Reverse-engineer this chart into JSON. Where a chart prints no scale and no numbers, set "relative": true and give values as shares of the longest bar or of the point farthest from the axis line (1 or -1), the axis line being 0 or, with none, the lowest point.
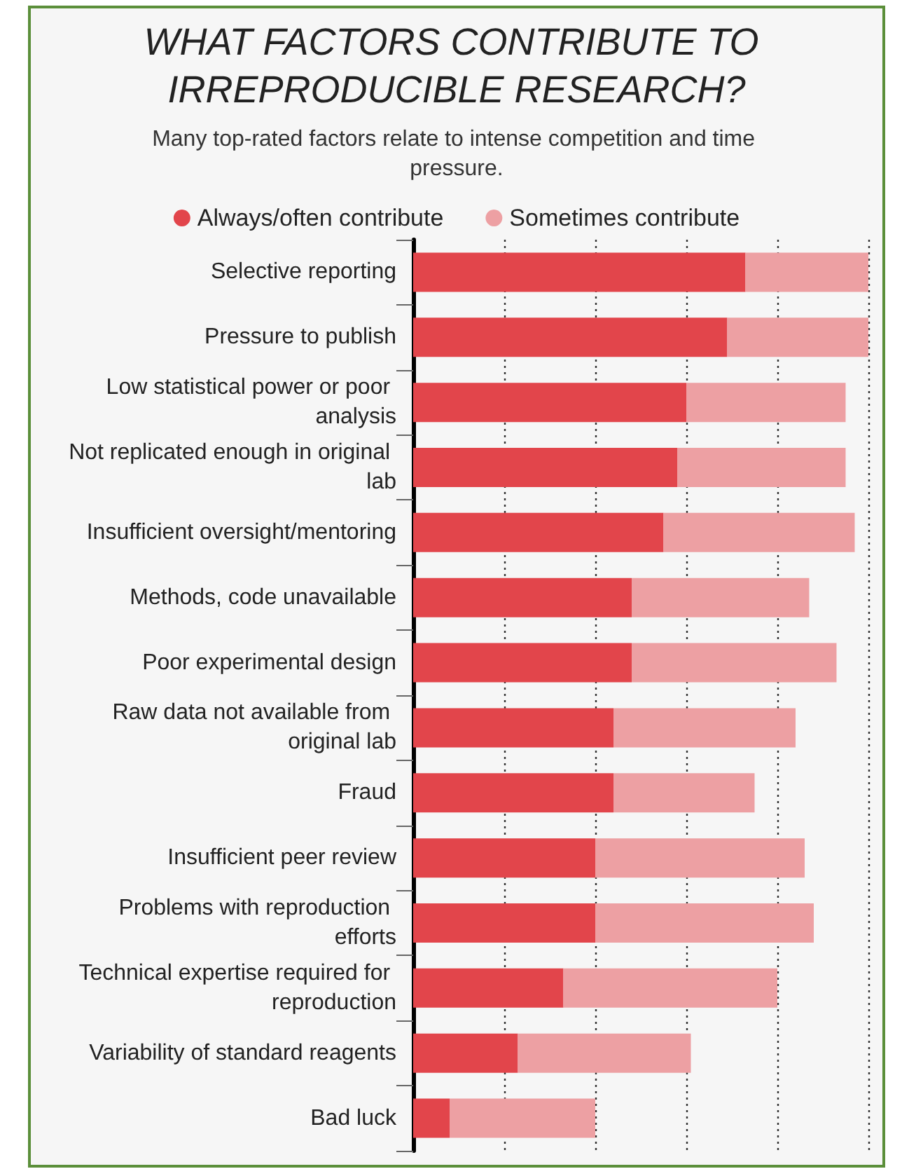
{
  "chart_data": {
    "type": "bar",
    "orientation": "horizontal",
    "stacked": true,
    "relative": true,
    "title": "WHAT FACTORS CONTRIBUTE TO IRREPRODUCIBLE RESEARCH?",
    "subtitle": "Many top-rated factors relate to intense competition and time pressure.",
    "categories": [
      "Selective reporting",
      "Pressure to publish",
      "Low statistical power or poor analysis",
      "Not replicated enough in original lab",
      "Insufficient oversight/mentoring",
      "Methods, code unavailable",
      "Poor experimental design",
      "Raw data not available from original lab",
      "Fraud",
      "Insufficient peer review",
      "Problems with reproduction efforts",
      "Technical expertise required for reproduction",
      "Variability of standard reagents",
      "Bad luck"
    ],
    "series": [
      {
        "name": "Always/often contribute",
        "color": "#e2454b",
        "values": [
          0.73,
          0.69,
          0.6,
          0.58,
          0.55,
          0.48,
          0.48,
          0.44,
          0.44,
          0.4,
          0.4,
          0.33,
          0.23,
          0.08
        ]
      },
      {
        "name": "Sometimes contribute",
        "color": "#eda0a3",
        "values": [
          0.27,
          0.31,
          0.35,
          0.37,
          0.42,
          0.39,
          0.45,
          0.4,
          0.31,
          0.46,
          0.48,
          0.47,
          0.38,
          0.32
        ]
      }
    ],
    "legend": "top",
    "grid": "x",
    "marker": "circle"
  }
}
